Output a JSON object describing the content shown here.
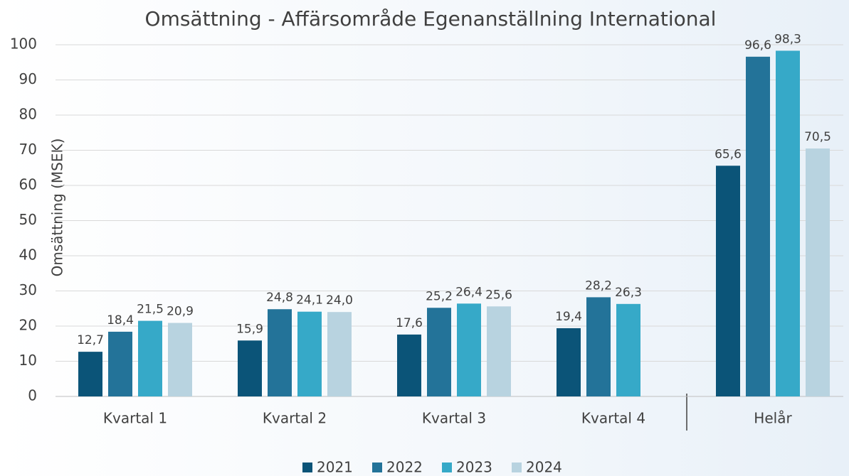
{
  "chart_data": {
    "type": "bar",
    "title": "Omsättning - Affärsområde Egenanställning International",
    "ylabel": "Omsättning (MSEK)",
    "categories": [
      "Kvartal 1",
      "Kvartal 2",
      "Kvartal 3",
      "Kvartal 4",
      "Helår"
    ],
    "series": [
      {
        "name": "2021",
        "color": "#0b5478",
        "values": [
          12.7,
          15.9,
          17.6,
          19.4,
          65.6
        ],
        "value_labels": [
          "12,7",
          "15,9",
          "17,6",
          "19,4",
          "65,6"
        ]
      },
      {
        "name": "2022",
        "color": "#237399",
        "values": [
          18.4,
          24.8,
          25.2,
          28.2,
          96.6
        ],
        "value_labels": [
          "18,4",
          "24,8",
          "25,2",
          "28,2",
          "96,6"
        ]
      },
      {
        "name": "2023",
        "color": "#36a9c8",
        "values": [
          21.5,
          24.1,
          26.4,
          26.3,
          98.3
        ],
        "value_labels": [
          "21,5",
          "24,1",
          "26,4",
          "26,3",
          "98,3"
        ]
      },
      {
        "name": "2024",
        "color": "#b8d3e0",
        "values": [
          20.9,
          24.0,
          25.6,
          null,
          70.5
        ],
        "value_labels": [
          "20,9",
          "24,0",
          "25,6",
          null,
          "70,5"
        ]
      }
    ],
    "ylim": [
      0,
      100
    ],
    "yticks": [
      0,
      10,
      20,
      30,
      40,
      50,
      60,
      70,
      80,
      90,
      100
    ],
    "grid": true,
    "legend": "bottom"
  }
}
